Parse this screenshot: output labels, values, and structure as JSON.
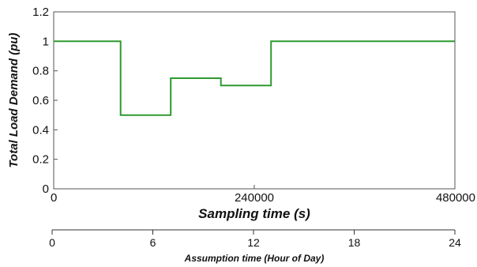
{
  "chart_data": {
    "type": "line",
    "ylabel": "Total Load Demand (pu)",
    "xlabel": "Sampling time (s)",
    "xlim": [
      0,
      480000
    ],
    "ylim": [
      0,
      1.2
    ],
    "xticks": [
      0,
      240000,
      480000
    ],
    "xtick_labels": [
      "0",
      "240000",
      "480000"
    ],
    "yticks": [
      0,
      0.2,
      0.4,
      0.6,
      0.8,
      1,
      1.2
    ],
    "ytick_labels": [
      "0",
      "0.2",
      "0.4",
      "0.6",
      "0.8",
      "1",
      "1.2"
    ],
    "grid": false,
    "line_color": "#2e9a2e",
    "series": [
      {
        "x": [
          0,
          80000,
          80000,
          140000,
          140000,
          200000,
          200000,
          260000,
          260000,
          480000
        ],
        "y": [
          1,
          1,
          0.5,
          0.5,
          0.75,
          0.75,
          0.7,
          0.7,
          1,
          1
        ]
      }
    ],
    "secondary_axis": {
      "xlabel": "Assumption time (Hour of Day)",
      "xlim": [
        0,
        24
      ],
      "xticks": [
        0,
        6,
        12,
        18,
        24
      ],
      "xtick_labels": [
        "0",
        "6",
        "12",
        "18",
        "24"
      ]
    }
  }
}
